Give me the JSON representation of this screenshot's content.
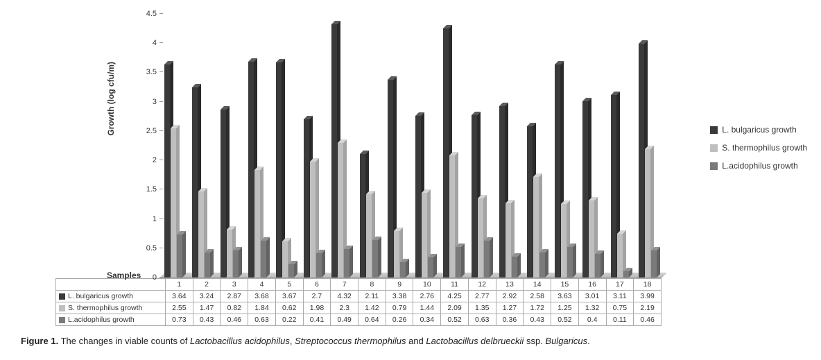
{
  "chart": {
    "type": "bar",
    "ylabel": "Growth (log cfu/m)",
    "xlabel": "Samples",
    "ylim": [
      0,
      4.5
    ],
    "ytick_step": 0.5,
    "categories": [
      "1",
      "2",
      "3",
      "4",
      "5",
      "6",
      "7",
      "8",
      "9",
      "10",
      "11",
      "12",
      "13",
      "14",
      "15",
      "16",
      "17",
      "18"
    ],
    "series": [
      {
        "name": "L. bulgaricus growth",
        "color": "#3a3a3a",
        "color_top": "#5a5a5a",
        "color_side": "#2a2a2a",
        "values": [
          3.64,
          3.24,
          2.87,
          3.68,
          3.67,
          2.7,
          4.32,
          2.11,
          3.38,
          2.76,
          4.25,
          2.77,
          2.92,
          2.58,
          3.63,
          3.01,
          3.11,
          3.99
        ]
      },
      {
        "name": "S. thermophilus growth",
        "color": "#bfbfbf",
        "color_top": "#d6d6d6",
        "color_side": "#a3a3a3",
        "values": [
          2.55,
          1.47,
          0.82,
          1.84,
          0.62,
          1.98,
          2.3,
          1.42,
          0.79,
          1.44,
          2.09,
          1.35,
          1.27,
          1.72,
          1.25,
          1.32,
          0.75,
          2.19
        ]
      },
      {
        "name": "L.acidophilus growth",
        "color": "#7a7a7a",
        "color_top": "#929292",
        "color_side": "#626262",
        "values": [
          0.73,
          0.43,
          0.46,
          0.63,
          0.22,
          0.41,
          0.49,
          0.64,
          0.26,
          0.34,
          0.52,
          0.63,
          0.36,
          0.43,
          0.52,
          0.4,
          0.11,
          0.46
        ]
      }
    ],
    "background_color": "#ffffff",
    "grid_color": "#999999",
    "label_fontsize": 12,
    "tick_fontsize": 11,
    "legend_position": "right"
  },
  "caption": {
    "label": "Figure 1.",
    "text_pre": " The changes in viable counts of ",
    "it1": "Lactobacillus acidophilus",
    "sep1": ", ",
    "it2": "Streptococcus thermophilus",
    "mid": " and ",
    "it3": "Lactobacillus delbrueckii",
    "text_post": " ssp. ",
    "it4": "Bulgaricus",
    "end": "."
  }
}
